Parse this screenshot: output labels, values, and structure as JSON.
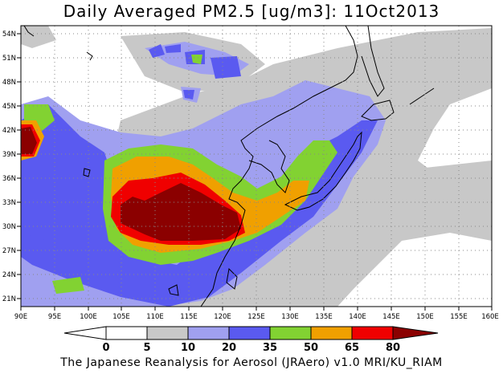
{
  "title": "Daily Averaged PM2.5 [ug/m3]: 11Oct2013",
  "footer": "The Japanese Reanalysis for Aerosol (JRAero) v1.0 MRI/KU_RIAM",
  "map": {
    "lon_range": [
      90,
      160
    ],
    "lat_range": [
      20,
      55
    ],
    "lon_ticks": [
      "90E",
      "95E",
      "100E",
      "105E",
      "110E",
      "115E",
      "120E",
      "125E",
      "130E",
      "135E",
      "140E",
      "145E",
      "150E",
      "155E",
      "160E"
    ],
    "lat_ticks": [
      "54N",
      "51N",
      "48N",
      "45N",
      "42N",
      "39N",
      "36N",
      "33N",
      "30N",
      "27N",
      "24N",
      "21N"
    ]
  },
  "colorbar": {
    "labels": [
      "0",
      "5",
      "10",
      "20",
      "35",
      "50",
      "65",
      "80"
    ],
    "colors": [
      "#ffffff",
      "#c8c8c8",
      "#a0a0f0",
      "#5a5af0",
      "#82d232",
      "#f0a000",
      "#f00000",
      "#8b0000"
    ]
  }
}
